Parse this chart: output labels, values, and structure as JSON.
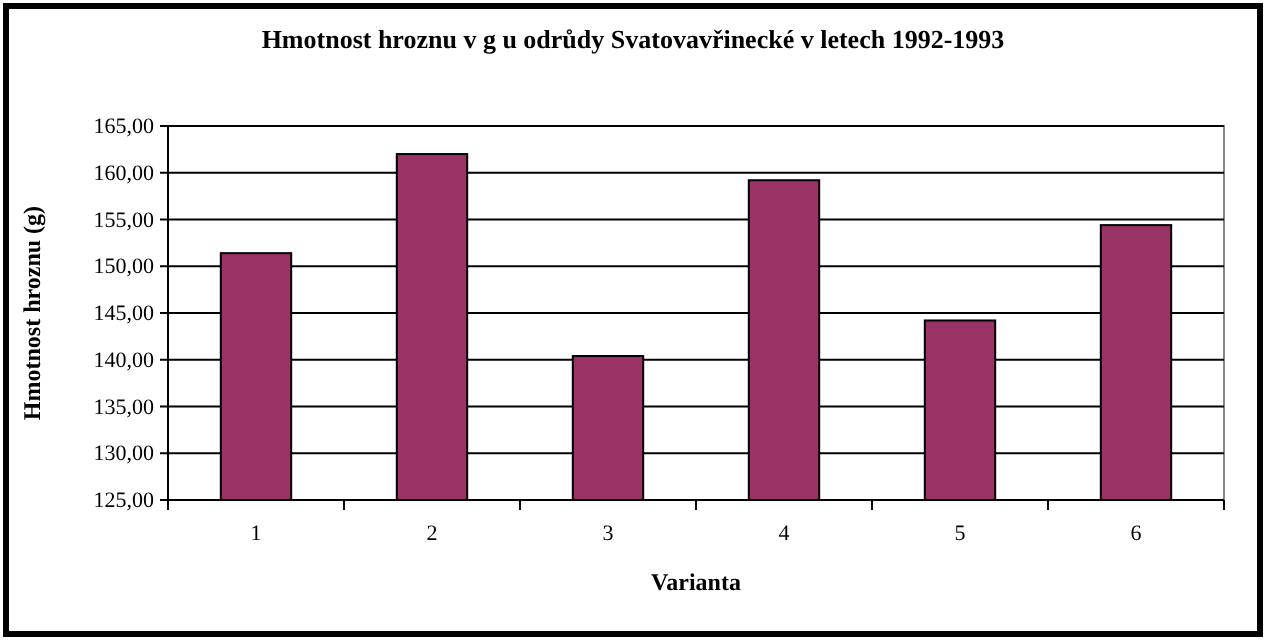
{
  "chart_data": {
    "type": "bar",
    "title": "Hmotnost hroznu v g u odrůdy Svatovavřinecké v letech 1992-1993",
    "xlabel": "Varianta",
    "ylabel": "Hmotnost hroznu (g)",
    "categories": [
      "1",
      "2",
      "3",
      "4",
      "5",
      "6"
    ],
    "values": [
      151.4,
      162.0,
      140.4,
      159.2,
      144.2,
      154.4
    ],
    "color": "#993366",
    "ylim": [
      125,
      165
    ],
    "yticks": [
      {
        "value": 125,
        "label": "125,00"
      },
      {
        "value": 130,
        "label": "130,00"
      },
      {
        "value": 135,
        "label": "135,00"
      },
      {
        "value": 140,
        "label": "140,00"
      },
      {
        "value": 145,
        "label": "145,00"
      },
      {
        "value": 150,
        "label": "150,00"
      },
      {
        "value": 155,
        "label": "155,00"
      },
      {
        "value": 160,
        "label": "160,00"
      },
      {
        "value": 165,
        "label": "165,00"
      }
    ],
    "grid": "y"
  }
}
